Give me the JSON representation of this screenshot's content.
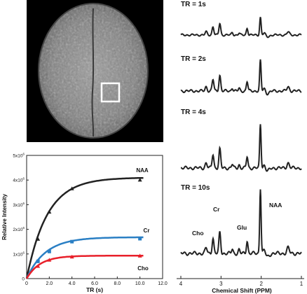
{
  "mri_panel": {
    "background": "#000000",
    "roi_box_color": "#ffffff"
  },
  "spectra_panel": {
    "xaxis": {
      "label": "Chemical Shift (PPM)",
      "ticks": [
        "4",
        "3",
        "2",
        "1"
      ]
    },
    "spectra": [
      {
        "label": "TR = 1s",
        "peak_scale": 0.55
      },
      {
        "label": "TR = 2s",
        "peak_scale": 0.75
      },
      {
        "label": "TR = 4s",
        "peak_scale": 0.9
      },
      {
        "label": "TR = 10s",
        "peak_scale": 1.0
      }
    ],
    "peak_labels": [
      "Cho",
      "Cr",
      "Glu",
      "NAA"
    ],
    "line_color": "#222222"
  },
  "chart_data": {
    "type": "line",
    "title": "",
    "xlabel": "TR (s)",
    "ylabel": "Relative Intensity",
    "xlim": [
      0,
      12
    ],
    "ylim": [
      0,
      5
    ],
    "xticks": [
      "0",
      "2.0",
      "4.0",
      "6.0",
      "8.0",
      "10.0",
      "12.0"
    ],
    "yticks": [
      {
        "value": 0,
        "label": "0"
      },
      {
        "value": 1,
        "label": "1x10",
        "exp": "6"
      },
      {
        "value": 2,
        "label": "2x10",
        "exp": "6"
      },
      {
        "value": 3,
        "label": "3x10",
        "exp": "6"
      },
      {
        "value": 4,
        "label": "4x10",
        "exp": "6"
      },
      {
        "value": 5,
        "label": "5x10",
        "exp": "6"
      }
    ],
    "series": [
      {
        "name": "NAA",
        "color": "#222222",
        "marker": "triangle",
        "x": [
          1,
          2,
          4,
          10
        ],
        "y": [
          1.6,
          2.7,
          3.65,
          4.0
        ],
        "fit_max": 4.1,
        "fit_rate": 0.55
      },
      {
        "name": "Cr",
        "color": "#2a7fc4",
        "marker": "square",
        "x": [
          1,
          2,
          4,
          10
        ],
        "y": [
          0.7,
          1.1,
          1.5,
          1.62
        ],
        "fit_max": 1.68,
        "fit_rate": 0.6
      },
      {
        "name": "Cho",
        "color": "#e8202a",
        "marker": "triangle",
        "x": [
          1,
          2,
          4,
          10
        ],
        "y": [
          0.5,
          0.75,
          0.88,
          0.92
        ],
        "fit_max": 0.93,
        "fit_rate": 0.85
      }
    ]
  }
}
